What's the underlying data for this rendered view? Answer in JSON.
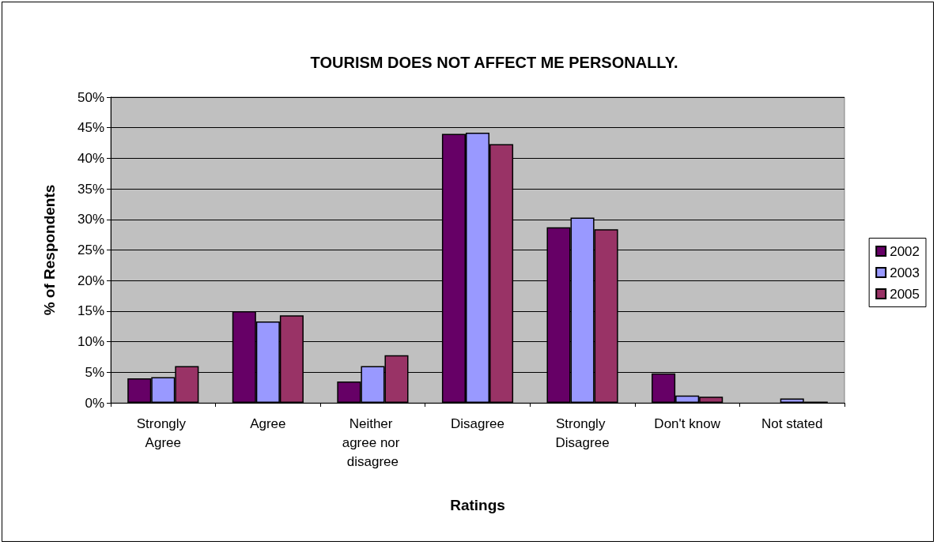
{
  "chart_data": {
    "type": "bar",
    "title": "TOURISM DOES NOT AFFECT ME PERSONALLY.",
    "xlabel": "Ratings",
    "ylabel": "% of Respondents",
    "categories": [
      "Strongly Agree",
      "Agree",
      "Neither agree nor disagree",
      "Disagree",
      "Strongly Disagree",
      "Don't know",
      "Not stated"
    ],
    "series": [
      {
        "name": "2002",
        "color": "#660066",
        "values": [
          4.0,
          15.0,
          3.5,
          44.0,
          28.7,
          4.8,
          null
        ]
      },
      {
        "name": "2003",
        "color": "#9999ff",
        "values": [
          4.2,
          13.3,
          6.0,
          44.2,
          30.3,
          1.2,
          0.7
        ]
      },
      {
        "name": "2005",
        "color": "#993366",
        "values": [
          6.0,
          14.3,
          7.8,
          42.3,
          28.4,
          1.0,
          0.2
        ]
      }
    ],
    "ylim": [
      0,
      50
    ],
    "yticks": [
      {
        "value": 0,
        "label": "0%"
      },
      {
        "value": 5,
        "label": "5%"
      },
      {
        "value": 10,
        "label": "10%"
      },
      {
        "value": 15,
        "label": "15%"
      },
      {
        "value": 20,
        "label": "20%"
      },
      {
        "value": 25,
        "label": "25%"
      },
      {
        "value": 30,
        "label": "30%"
      },
      {
        "value": 35,
        "label": "35%"
      },
      {
        "value": 40,
        "label": "40%"
      },
      {
        "value": 45,
        "label": "45%"
      },
      {
        "value": 50,
        "label": "50%"
      }
    ],
    "grid": "y",
    "legend": "right"
  }
}
